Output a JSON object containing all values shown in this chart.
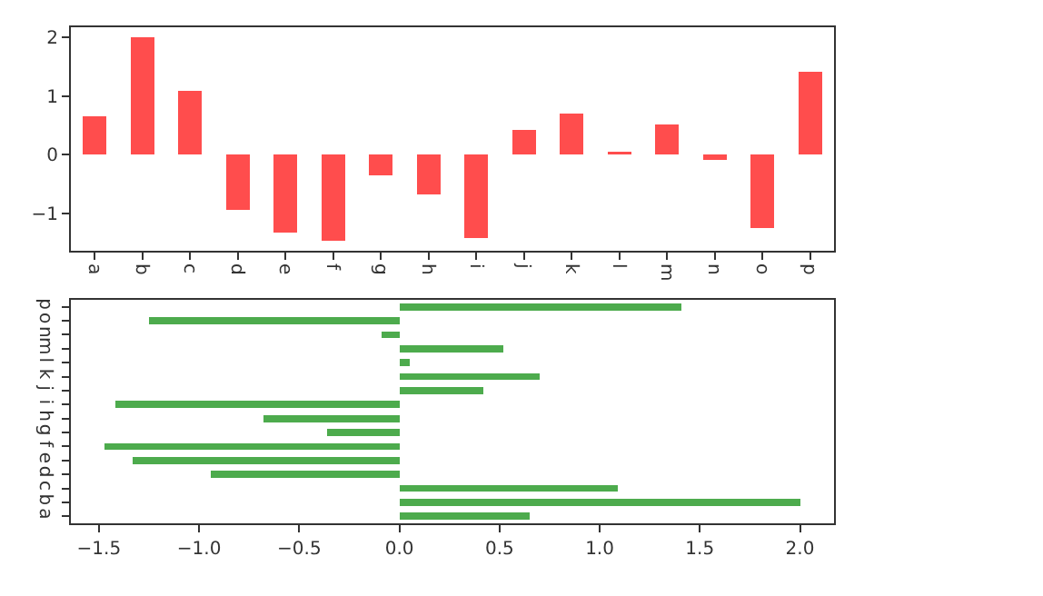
{
  "chart_data": [
    {
      "type": "bar",
      "categories": [
        "a",
        "b",
        "c",
        "d",
        "e",
        "f",
        "g",
        "h",
        "i",
        "j",
        "k",
        "l",
        "m",
        "n",
        "o",
        "p"
      ],
      "values": [
        0.65,
        2.0,
        1.09,
        -0.94,
        -1.33,
        -1.47,
        -0.36,
        -0.68,
        -1.42,
        0.42,
        0.7,
        0.05,
        0.52,
        -0.09,
        -1.25,
        1.41
      ],
      "color": "#ff4d4d",
      "ylim": [
        -1.64,
        2.17
      ],
      "yticks": [
        {
          "value": -1,
          "label": "−1"
        },
        0,
        1,
        2
      ],
      "grid": false
    },
    {
      "type": "bar",
      "orientation": "horizontal",
      "categories": [
        "p",
        "o",
        "n",
        "m",
        "l",
        "k",
        "j",
        "i",
        "h",
        "g",
        "f",
        "e",
        "d",
        "c",
        "b",
        "a"
      ],
      "values": [
        1.41,
        -1.25,
        -0.09,
        0.52,
        0.05,
        0.7,
        0.42,
        -1.42,
        -0.68,
        -0.36,
        -1.47,
        -1.33,
        -0.94,
        1.09,
        2.0,
        0.65
      ],
      "color": "#4dab4d",
      "xlim": [
        -1.64,
        2.17
      ],
      "xticks": [
        {
          "value": -1.5,
          "label": "−1.5"
        },
        {
          "value": -1,
          "label": "−1.0"
        },
        {
          "value": -0.5,
          "label": "−0.5"
        },
        {
          "value": 0,
          "label": "0.0"
        },
        {
          "value": 0.5,
          "label": "0.5"
        },
        {
          "value": 1,
          "label": "1.0"
        },
        {
          "value": 1.5,
          "label": "1.5"
        },
        {
          "value": 2,
          "label": "2.0"
        }
      ],
      "grid": false
    }
  ]
}
